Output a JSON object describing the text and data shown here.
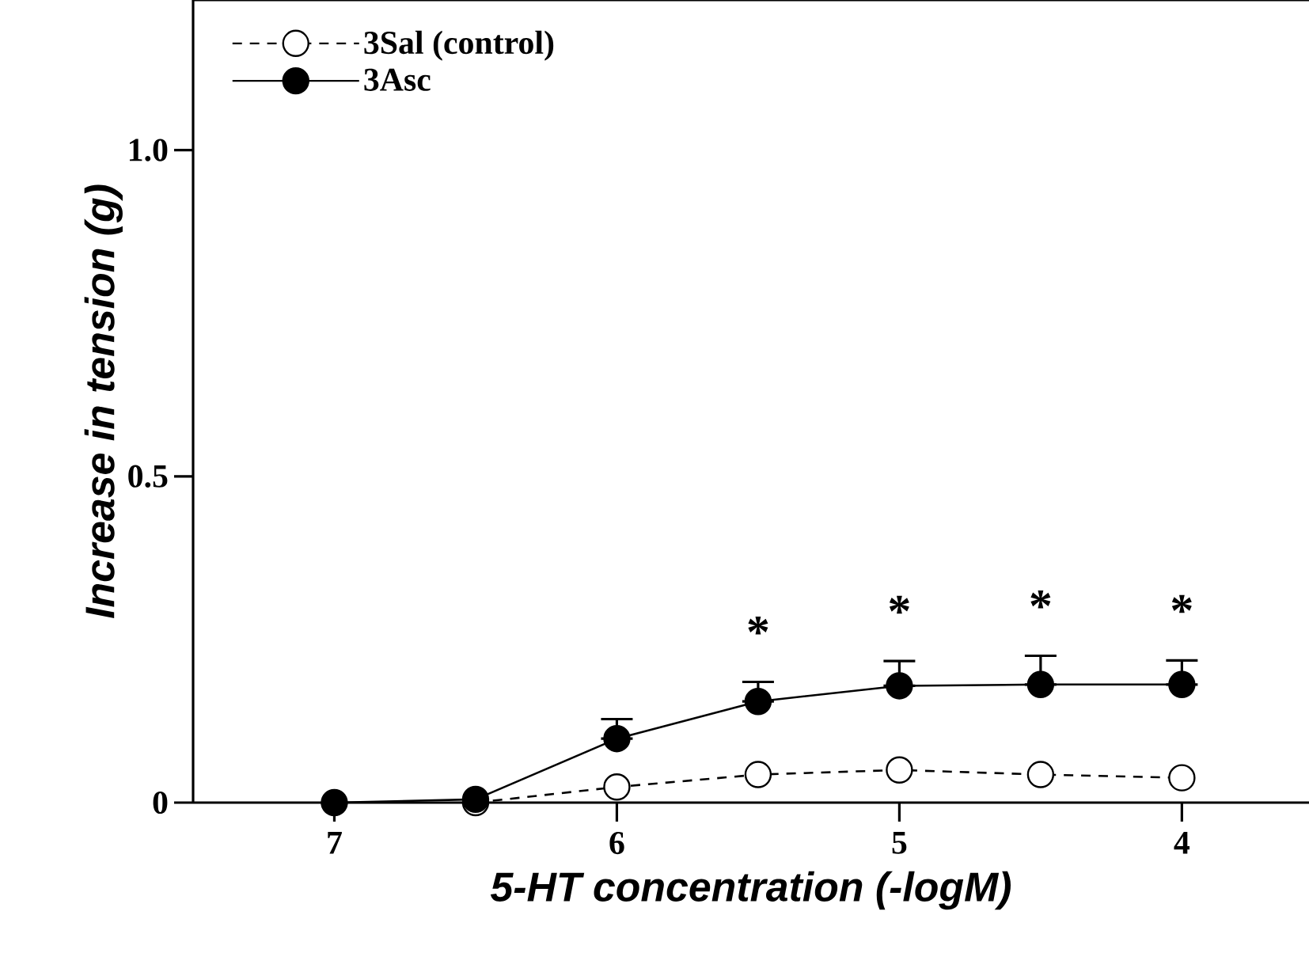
{
  "chart_data": {
    "type": "line",
    "xlabel": "5-HT concentration (-logM)",
    "ylabel": "Increase in tension (g)",
    "x": [
      7,
      6.5,
      6,
      5.5,
      5,
      4.5,
      4
    ],
    "xlim": [
      7.5,
      3.55
    ],
    "ylim": [
      0,
      1.23
    ],
    "xticks": [
      7,
      6,
      5,
      4
    ],
    "yticks": [
      0,
      0.5,
      {
        "value": 1,
        "label": "1.0"
      }
    ],
    "series": [
      {
        "name": "3Sal (control)",
        "color": "#000000",
        "line_style": "dashed",
        "values": [
          null,
          0,
          0.024,
          0.043,
          0.05,
          0.043,
          0.038
        ]
      },
      {
        "name": "3Asc",
        "color": "#000000",
        "line_style": "solid",
        "values": [
          0,
          0.005,
          0.098,
          0.155,
          0.179,
          0.181,
          0.181
        ],
        "errors": [
          null,
          null,
          [
            0.098,
            0.128
          ],
          [
            0.155,
            0.185
          ],
          [
            0.179,
            0.217
          ],
          [
            0.181,
            0.225
          ],
          [
            0.181,
            0.218
          ]
        ]
      }
    ],
    "marker": "circle",
    "legend": "top left",
    "grid": false,
    "annotations": [
      "*",
      "*",
      "*",
      "*"
    ]
  }
}
